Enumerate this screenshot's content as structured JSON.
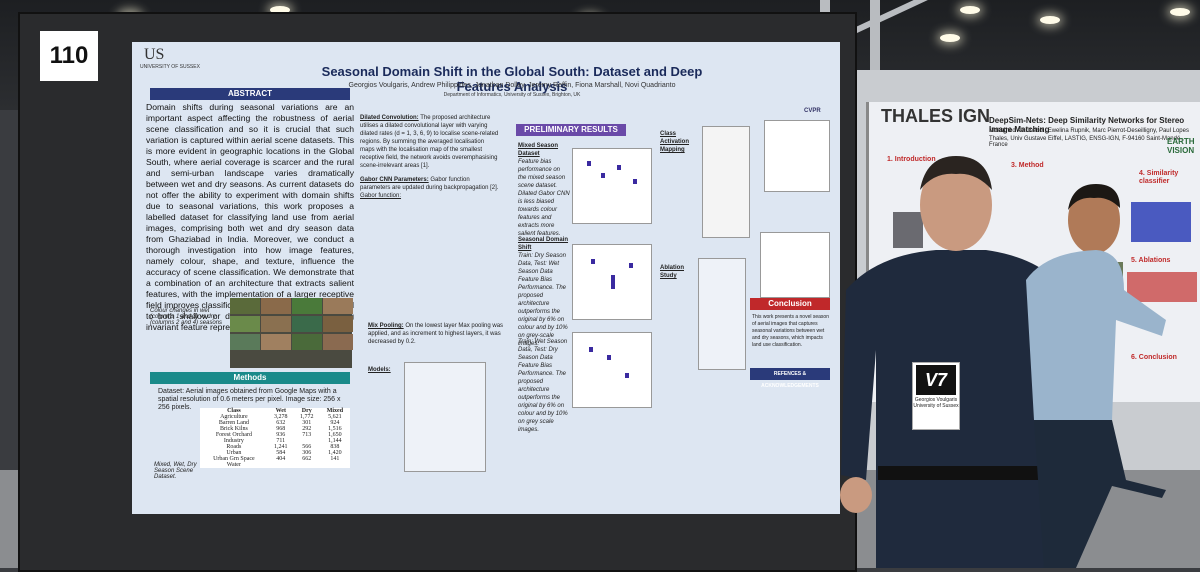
{
  "board_number": "110",
  "poster": {
    "university_logo": "US",
    "university_name": "UNIVERSITY OF SUSSEX",
    "title": "Seasonal Domain Shift in the Global South: Dataset and Deep Features Analysis",
    "authors": "Georgios Voulgaris, Andrew Philippides, Jonathan Dolley, Jeremy Reffin, Fiona Marshall, Novi Quadrianto",
    "affiliation": "Department of Informatics, University of Sussex, Brighton, UK",
    "conference_logo": "CVPR",
    "abstract_header": "ABSTRACT",
    "abstract_text": "Domain shifts during seasonal variations are an important aspect affecting the robustness of aerial scene classification and so it is crucial that such variation is captured within aerial scene datasets. This is more evident in geographic locations in the Global South, where aerial coverage is scarcer and the rural and semi-urban landscape varies dramatically between wet and dry seasons. As current datasets do not offer the ability to experiment with domain shifts due to seasonal variations, this work proposes a labelled dataset for classifying land use from aerial images, comprising both wet and dry season data from Ghaziabad in India. Moreover, we conduct a thorough investigation into how image features, namely colour, shape, and texture, influence the accuracy of scene classification. We demonstrate that a combination of an architecture that extracts salient features, with the implementation of a larger receptive field improves classification performance when applied to both shallow or deep architectures by extracting invariant feature representations across domains.",
    "colour_caption": "Colour changes in wet (columns 1 and 3) vs dry (columns 2 and 4) seasons",
    "methods_header": "Methods",
    "dataset_text": "Dataset: Aerial images obtained from Google Maps with a spatial resolution of 0.6 meters per pixel. Image size: 256 x 256 pixels.",
    "table_caption": "Mixed, Wet, Dry Season Scene Dataset.",
    "table_headers": [
      "Class",
      "Wet",
      "Dry",
      "Mixed"
    ],
    "table_rows": [
      [
        "Agriculture",
        "3,278",
        "1,772",
        "5,621"
      ],
      [
        "Barren Land",
        "632",
        "301",
        "924"
      ],
      [
        "Brick Kilns",
        "968",
        "292",
        "1,516"
      ],
      [
        "Forest Orchard",
        "936",
        "713",
        "1,650"
      ],
      [
        "Industry",
        "711",
        "",
        "1,144"
      ],
      [
        "Roads",
        "1,241",
        "566",
        "838"
      ],
      [
        "Urban",
        "584",
        "306",
        "1,420"
      ],
      [
        "Urban Grn Space",
        "404",
        "662",
        "141"
      ],
      [
        "Water",
        "",
        "",
        ""
      ]
    ],
    "dilated_title": "Dilated Convolution:",
    "dilated_text": "The proposed architecture utilises a dilated convolutional layer with varying dilated rates (d = 1, 3, 6, 9) to localise scene-related regions. By summing the averaged localisation maps with the localisation map of the smallest receptive field, the network avoids overemphasising scene-irrelevant areas [1].",
    "gabor_title": "Gabor CNN Parameters:",
    "gabor_text": "Gabor function parameters are updated during backpropagation [2].",
    "gabor_sub": "Gabor function:",
    "mixpool_title": "Mix Pooling:",
    "mixpool_text": "On the lowest layer Max pooling was applied, and as increment to highest layers, it was decreased by 0.2.",
    "models_label": "Models:",
    "results_header": "PRELIMINARY RESULTS",
    "mixed_title": "Mixed Season Dataset",
    "mixed_text": "Feature bias performance on the mixed season scene dataset. Dilated Gabor CNN is less biased towards colour features and extracts more salient features.",
    "shift_title": "Seasonal Domain Shift",
    "shift_text": "Train: Dry Season Data, Test: Wet Season Data Feature Bias Performance. The proposed architecture outperforms the original by 6% on colour and by 10% on grey-scale images.",
    "shift_text2": "Train: Wet Season Data, Test: Dry Season Data Feature Bias Performance. The proposed architecture outperforms the original by 6% on colour and by 10% on grey scale images.",
    "cam_title": "Class Activation Mapping",
    "ablation_title": "Ablation Study",
    "conclusion_header": "Conclusion",
    "conclusion_text": "This work presents a novel season of aerial images that captures seasonal variations between wet and dry seasons, which impacts land use classification.",
    "refs_header": "REFENCES & ACKNOWLEDGEMENTS"
  },
  "second_poster": {
    "title": "THALES IGN",
    "subtitle": "DeepSim-Nets: Deep Similarity Networks for Stereo Image Matching",
    "authors": "Mohamed Ali Chebbi, Ewelina Rupnik, Marc Pierrot-Deseilligny, Paul Lopes",
    "affiliation": "Thales, Univ Gustave Eiffel, LASTIG, ENSG-IGN, F-94160 Saint-Mandé, France",
    "earthvision": "EARTH VISION",
    "section_intro": "1. Introduction",
    "section_method": "3. Method",
    "section_similarity": "4. Similarity classifier",
    "section_ablation": "5. Ablations",
    "section_conclusion": "6. Conclusion"
  },
  "badge": {
    "logo": "V7",
    "name": "Georgios Voulgaris",
    "org": "University of Sussex"
  },
  "colors": {
    "poster_bg": "#dde6f2",
    "header_navy": "#2a3a7a",
    "methods_teal": "#1a8a8a",
    "results_purple": "#6a4aa8",
    "conclusion_red": "#c0282a"
  }
}
